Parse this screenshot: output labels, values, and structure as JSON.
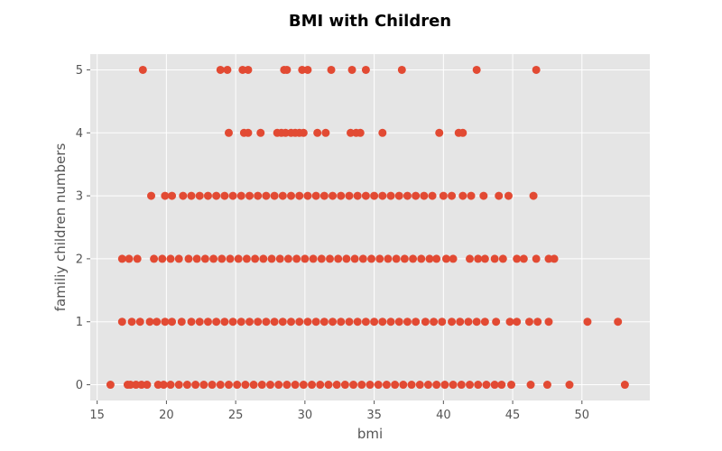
{
  "chart_data": {
    "type": "scatter",
    "title": "BMI with Children",
    "xlabel": "bmi",
    "ylabel": "familiy children numbers",
    "xlim": [
      14.5,
      54.9
    ],
    "ylim": [
      -0.25,
      5.25
    ],
    "xticks": [
      15,
      20,
      25,
      30,
      35,
      40,
      45,
      50
    ],
    "yticks": [
      0,
      1,
      2,
      3,
      4,
      5
    ],
    "grid": true,
    "colors": {
      "background": "#e5e5e5",
      "grid": "#ffffff",
      "marker": "#e24a33",
      "text": "#555555"
    },
    "series": [
      {
        "points": [
          [
            15.96,
            0
          ],
          [
            17.2,
            0
          ],
          [
            17.4,
            0
          ],
          [
            17.8,
            0
          ],
          [
            18.2,
            0
          ],
          [
            18.6,
            0
          ],
          [
            19.4,
            0
          ],
          [
            19.8,
            0
          ],
          [
            20.3,
            0
          ],
          [
            20.9,
            0
          ],
          [
            21.5,
            0
          ],
          [
            22.1,
            0
          ],
          [
            22.7,
            0
          ],
          [
            23.3,
            0
          ],
          [
            23.9,
            0
          ],
          [
            24.5,
            0
          ],
          [
            25.1,
            0
          ],
          [
            25.7,
            0
          ],
          [
            26.3,
            0
          ],
          [
            26.9,
            0
          ],
          [
            27.5,
            0
          ],
          [
            28.1,
            0
          ],
          [
            28.7,
            0
          ],
          [
            29.3,
            0
          ],
          [
            29.9,
            0
          ],
          [
            30.5,
            0
          ],
          [
            31.1,
            0
          ],
          [
            31.7,
            0
          ],
          [
            32.3,
            0
          ],
          [
            32.9,
            0
          ],
          [
            33.5,
            0
          ],
          [
            34.1,
            0
          ],
          [
            34.7,
            0
          ],
          [
            35.3,
            0
          ],
          [
            35.9,
            0
          ],
          [
            36.5,
            0
          ],
          [
            37.1,
            0
          ],
          [
            37.7,
            0
          ],
          [
            38.3,
            0
          ],
          [
            38.9,
            0
          ],
          [
            39.5,
            0
          ],
          [
            40.1,
            0
          ],
          [
            40.7,
            0
          ],
          [
            41.3,
            0
          ],
          [
            41.9,
            0
          ],
          [
            42.5,
            0
          ],
          [
            43.1,
            0
          ],
          [
            43.7,
            0
          ],
          [
            44.2,
            0
          ],
          [
            44.9,
            0
          ],
          [
            46.3,
            0
          ],
          [
            47.5,
            0
          ],
          [
            49.1,
            0
          ],
          [
            53.1,
            0
          ],
          [
            16.8,
            1
          ],
          [
            17.5,
            1
          ],
          [
            18.1,
            1
          ],
          [
            18.8,
            1
          ],
          [
            19.3,
            1
          ],
          [
            19.9,
            1
          ],
          [
            20.4,
            1
          ],
          [
            21.1,
            1
          ],
          [
            21.8,
            1
          ],
          [
            22.4,
            1
          ],
          [
            23.0,
            1
          ],
          [
            23.6,
            1
          ],
          [
            24.2,
            1
          ],
          [
            24.8,
            1
          ],
          [
            25.4,
            1
          ],
          [
            26.0,
            1
          ],
          [
            26.6,
            1
          ],
          [
            27.2,
            1
          ],
          [
            27.8,
            1
          ],
          [
            28.4,
            1
          ],
          [
            29.0,
            1
          ],
          [
            29.6,
            1
          ],
          [
            30.2,
            1
          ],
          [
            30.8,
            1
          ],
          [
            31.4,
            1
          ],
          [
            32.0,
            1
          ],
          [
            32.6,
            1
          ],
          [
            33.2,
            1
          ],
          [
            33.8,
            1
          ],
          [
            34.4,
            1
          ],
          [
            35.0,
            1
          ],
          [
            35.6,
            1
          ],
          [
            36.2,
            1
          ],
          [
            36.8,
            1
          ],
          [
            37.4,
            1
          ],
          [
            38.0,
            1
          ],
          [
            38.7,
            1
          ],
          [
            39.3,
            1
          ],
          [
            39.9,
            1
          ],
          [
            40.6,
            1
          ],
          [
            41.2,
            1
          ],
          [
            41.8,
            1
          ],
          [
            42.4,
            1
          ],
          [
            43.0,
            1
          ],
          [
            43.8,
            1
          ],
          [
            44.8,
            1
          ],
          [
            45.3,
            1
          ],
          [
            46.2,
            1
          ],
          [
            46.8,
            1
          ],
          [
            47.6,
            1
          ],
          [
            50.4,
            1
          ],
          [
            52.6,
            1
          ],
          [
            16.8,
            2
          ],
          [
            17.3,
            2
          ],
          [
            17.9,
            2
          ],
          [
            19.1,
            2
          ],
          [
            19.7,
            2
          ],
          [
            20.3,
            2
          ],
          [
            20.9,
            2
          ],
          [
            21.6,
            2
          ],
          [
            22.2,
            2
          ],
          [
            22.8,
            2
          ],
          [
            23.4,
            2
          ],
          [
            24.0,
            2
          ],
          [
            24.6,
            2
          ],
          [
            25.2,
            2
          ],
          [
            25.8,
            2
          ],
          [
            26.4,
            2
          ],
          [
            27.0,
            2
          ],
          [
            27.6,
            2
          ],
          [
            28.2,
            2
          ],
          [
            28.8,
            2
          ],
          [
            29.4,
            2
          ],
          [
            30.0,
            2
          ],
          [
            30.6,
            2
          ],
          [
            31.2,
            2
          ],
          [
            31.8,
            2
          ],
          [
            32.4,
            2
          ],
          [
            33.0,
            2
          ],
          [
            33.6,
            2
          ],
          [
            34.2,
            2
          ],
          [
            34.8,
            2
          ],
          [
            35.4,
            2
          ],
          [
            36.0,
            2
          ],
          [
            36.6,
            2
          ],
          [
            37.2,
            2
          ],
          [
            37.8,
            2
          ],
          [
            38.4,
            2
          ],
          [
            39.0,
            2
          ],
          [
            39.5,
            2
          ],
          [
            40.2,
            2
          ],
          [
            40.7,
            2
          ],
          [
            41.9,
            2
          ],
          [
            42.5,
            2
          ],
          [
            43.0,
            2
          ],
          [
            43.7,
            2
          ],
          [
            44.3,
            2
          ],
          [
            45.3,
            2
          ],
          [
            45.8,
            2
          ],
          [
            46.7,
            2
          ],
          [
            47.6,
            2
          ],
          [
            48.0,
            2
          ],
          [
            18.9,
            3
          ],
          [
            19.9,
            3
          ],
          [
            20.4,
            3
          ],
          [
            21.2,
            3
          ],
          [
            21.8,
            3
          ],
          [
            22.4,
            3
          ],
          [
            23.0,
            3
          ],
          [
            23.6,
            3
          ],
          [
            24.2,
            3
          ],
          [
            24.8,
            3
          ],
          [
            25.4,
            3
          ],
          [
            26.0,
            3
          ],
          [
            26.6,
            3
          ],
          [
            27.2,
            3
          ],
          [
            27.8,
            3
          ],
          [
            28.4,
            3
          ],
          [
            29.0,
            3
          ],
          [
            29.6,
            3
          ],
          [
            30.2,
            3
          ],
          [
            30.8,
            3
          ],
          [
            31.4,
            3
          ],
          [
            32.0,
            3
          ],
          [
            32.6,
            3
          ],
          [
            33.2,
            3
          ],
          [
            33.8,
            3
          ],
          [
            34.4,
            3
          ],
          [
            35.0,
            3
          ],
          [
            35.6,
            3
          ],
          [
            36.2,
            3
          ],
          [
            36.8,
            3
          ],
          [
            37.4,
            3
          ],
          [
            38.0,
            3
          ],
          [
            38.6,
            3
          ],
          [
            39.2,
            3
          ],
          [
            40.0,
            3
          ],
          [
            40.6,
            3
          ],
          [
            41.4,
            3
          ],
          [
            42.0,
            3
          ],
          [
            42.9,
            3
          ],
          [
            44.0,
            3
          ],
          [
            44.7,
            3
          ],
          [
            46.5,
            3
          ],
          [
            18.3,
            5
          ],
          [
            23.9,
            5
          ],
          [
            24.4,
            5
          ],
          [
            25.5,
            5
          ],
          [
            25.9,
            5
          ],
          [
            28.5,
            5
          ],
          [
            28.7,
            5
          ],
          [
            29.8,
            5
          ],
          [
            30.2,
            5
          ],
          [
            31.9,
            5
          ],
          [
            33.4,
            5
          ],
          [
            34.4,
            5
          ],
          [
            37.0,
            5
          ],
          [
            42.4,
            5
          ],
          [
            46.7,
            5
          ],
          [
            24.5,
            4
          ],
          [
            25.6,
            4
          ],
          [
            25.9,
            4
          ],
          [
            26.8,
            4
          ],
          [
            28.0,
            4
          ],
          [
            28.3,
            4
          ],
          [
            28.6,
            4
          ],
          [
            29.0,
            4
          ],
          [
            29.3,
            4
          ],
          [
            29.6,
            4
          ],
          [
            29.9,
            4
          ],
          [
            30.9,
            4
          ],
          [
            31.5,
            4
          ],
          [
            33.3,
            4
          ],
          [
            33.7,
            4
          ],
          [
            34.0,
            4
          ],
          [
            35.6,
            4
          ],
          [
            39.7,
            4
          ],
          [
            41.1,
            4
          ],
          [
            41.4,
            4
          ]
        ]
      }
    ]
  }
}
